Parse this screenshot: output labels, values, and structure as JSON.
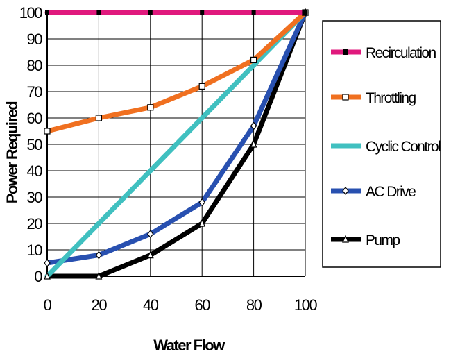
{
  "chart_data": {
    "type": "line",
    "x": [
      0,
      20,
      40,
      60,
      80,
      100
    ],
    "xlabel": "Water Flow",
    "ylabel": "Power Required",
    "xlim": [
      0,
      100
    ],
    "ylim": [
      0,
      100
    ],
    "x_ticks": [
      "0",
      "20",
      "40",
      "60",
      "80",
      "100"
    ],
    "y_ticks": [
      "0",
      "10",
      "20",
      "30",
      "40",
      "50",
      "60",
      "70",
      "80",
      "90",
      "100"
    ],
    "grid": true,
    "legend_position": "right",
    "series": [
      {
        "name": "Recirculation",
        "values": [
          100,
          100,
          100,
          100,
          100,
          100
        ],
        "color": "#e0197d",
        "marker": "square"
      },
      {
        "name": "Throttling",
        "values": [
          55,
          60,
          64,
          72,
          82,
          100
        ],
        "color": "#f07020",
        "marker": "square-open"
      },
      {
        "name": "Cyclic Control",
        "values": [
          0,
          20,
          40,
          60,
          80,
          100
        ],
        "color": "#40c0c0",
        "marker": "none"
      },
      {
        "name": "AC Drive",
        "values": [
          5,
          8,
          16,
          28,
          57,
          100
        ],
        "color": "#2850b0",
        "marker": "diamond"
      },
      {
        "name": "Pump",
        "values": [
          0,
          0,
          8,
          20,
          50,
          100
        ],
        "color": "#000000",
        "marker": "triangle-open"
      }
    ]
  }
}
